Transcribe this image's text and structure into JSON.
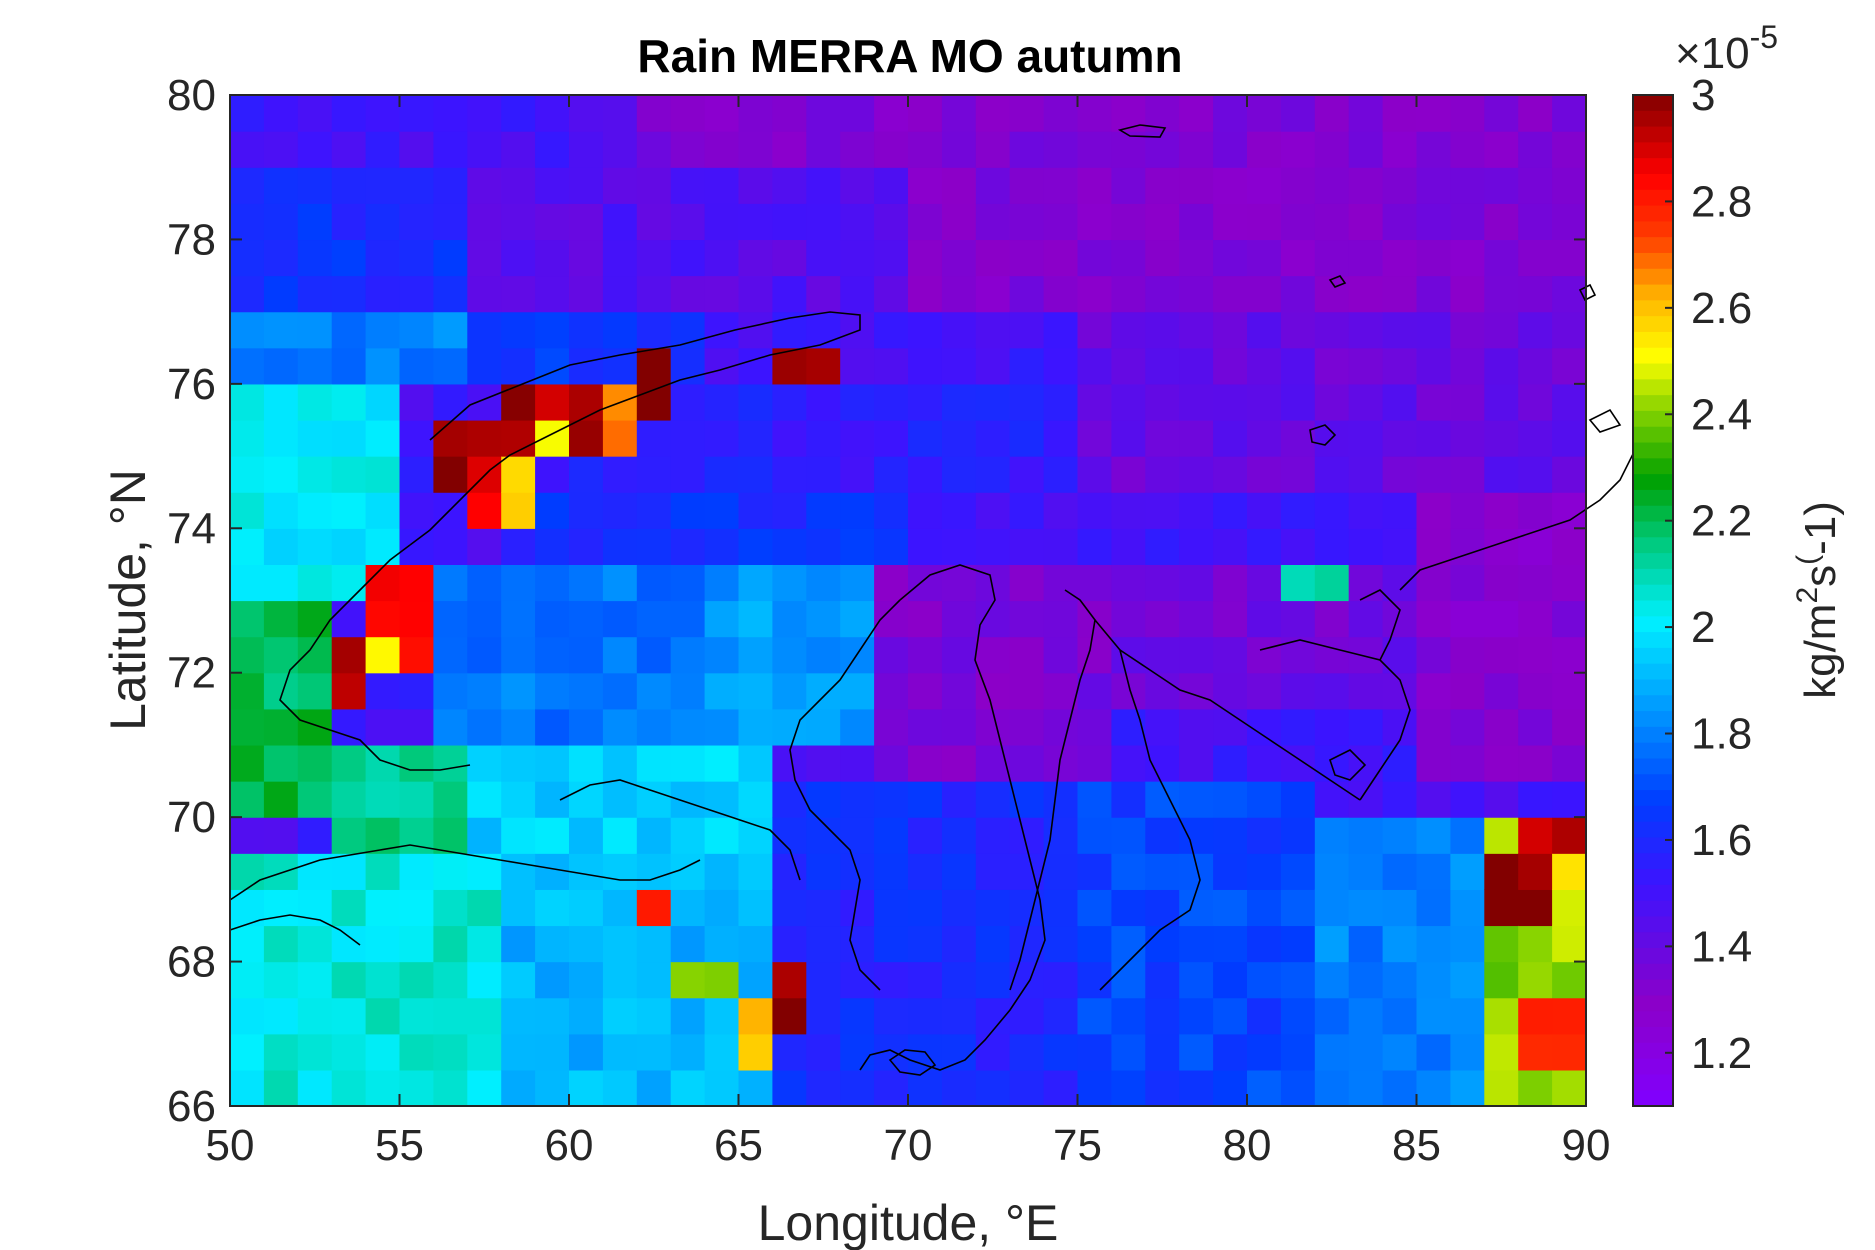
{
  "chart_data": {
    "type": "heatmap",
    "title": "Rain MERRA MO autumn",
    "xlabel": "Longitude, °E",
    "ylabel": "Latitude, °N",
    "xlim": [
      50,
      90
    ],
    "ylim": [
      66,
      80
    ],
    "xticks": [
      "50",
      "55",
      "60",
      "65",
      "70",
      "75",
      "80",
      "85",
      "90"
    ],
    "yticks": [
      "66",
      "68",
      "70",
      "72",
      "74",
      "76",
      "78",
      "80"
    ],
    "colorbar": {
      "label": "kg/m²s(-1)",
      "label_base": "kg/m",
      "label_sup1": "2",
      "label_mid": "s",
      "label_sup2": "(",
      "label_end": "-1)",
      "multiplier_base": "×10",
      "multiplier_exp": "-5",
      "range": [
        1.1,
        3.0
      ],
      "ticks": [
        "1.2",
        "1.4",
        "1.6",
        "1.8",
        "2",
        "2.2",
        "2.4",
        "2.6",
        "2.8",
        "3"
      ],
      "colormap": "jet-like (purple → blue → cyan → green → yellow → red → dark red)"
    },
    "grid": {
      "lon_start": 50,
      "lon_end": 90,
      "lon_step": 1,
      "lat_start": 66,
      "lat_end": 80,
      "lat_step": 0.5,
      "units": "×10^-5 kg/m²s",
      "background_value": 1.5,
      "region_patches": [
        {
          "lon": [
            50,
            62
          ],
          "lat": [
            79,
            80
          ],
          "value": 1.5
        },
        {
          "lon": [
            62,
            90
          ],
          "lat": [
            77,
            80
          ],
          "value": 1.32
        },
        {
          "lon": [
            50,
            57
          ],
          "lat": [
            77,
            79
          ],
          "value": 1.62
        },
        {
          "lon": [
            57,
            70
          ],
          "lat": [
            77,
            79
          ],
          "value": 1.45
        },
        {
          "lon": [
            50,
            57
          ],
          "lat": [
            76,
            77
          ],
          "value": 1.8
        },
        {
          "lon": [
            57,
            64
          ],
          "lat": [
            76,
            77
          ],
          "value": 1.65
        },
        {
          "lon": [
            50,
            55
          ],
          "lat": [
            73,
            76
          ],
          "value": 2.0
        },
        {
          "lon": [
            50,
            53
          ],
          "lat": [
            70,
            73
          ],
          "value": 2.2
        },
        {
          "lon": [
            53,
            57
          ],
          "lat": [
            69,
            71
          ],
          "value": 2.15
        },
        {
          "lon": [
            57,
            66
          ],
          "lat": [
            69.5,
            71
          ],
          "value": 1.95
        },
        {
          "lon": [
            56,
            64
          ],
          "lat": [
            71,
            73.5
          ],
          "value": 1.78
        },
        {
          "lon": [
            64,
            69
          ],
          "lat": [
            71,
            73.5
          ],
          "value": 1.85
        },
        {
          "lon": [
            58,
            70
          ],
          "lat": [
            73.5,
            74.5
          ],
          "value": 1.62
        },
        {
          "lon": [
            60,
            75
          ],
          "lat": [
            74.5,
            76
          ],
          "value": 1.55
        },
        {
          "lon": [
            75,
            90
          ],
          "lat": [
            74.5,
            77
          ],
          "value": 1.4
        },
        {
          "lon": [
            69,
            76
          ],
          "lat": [
            70.5,
            73.5
          ],
          "value": 1.35
        },
        {
          "lon": [
            76,
            85
          ],
          "lat": [
            71.5,
            73.5
          ],
          "value": 1.38
        },
        {
          "lon": [
            85,
            90
          ],
          "lat": [
            70.5,
            74.5
          ],
          "value": 1.3
        },
        {
          "lon": [
            66,
            75
          ],
          "lat": [
            66,
            70.5
          ],
          "value": 1.6
        },
        {
          "lon": [
            75,
            82
          ],
          "lat": [
            66,
            70.5
          ],
          "value": 1.68
        },
        {
          "lon": [
            82,
            87
          ],
          "lat": [
            66,
            70
          ],
          "value": 1.8
        },
        {
          "lon": [
            50,
            58
          ],
          "lat": [
            66,
            69.5
          ],
          "value": 2.05
        },
        {
          "lon": [
            58,
            66
          ],
          "lat": [
            66,
            69.5
          ],
          "value": 1.9
        },
        {
          "lon": [
            87,
            90
          ],
          "lat": [
            66,
            70
          ],
          "value": 2.4
        }
      ],
      "hotspots": [
        {
          "lon": [
            56,
            59
          ],
          "lat": [
            74.5,
            75.5
          ],
          "value": 3.0
        },
        {
          "lon": [
            58,
            61
          ],
          "lat": [
            75,
            76
          ],
          "value": 2.95
        },
        {
          "lon": [
            57,
            58
          ],
          "lat": [
            74,
            75
          ],
          "value": 2.85
        },
        {
          "lon": [
            61,
            62
          ],
          "lat": [
            75,
            76
          ],
          "value": 2.7
        },
        {
          "lon": [
            62,
            63
          ],
          "lat": [
            75.5,
            76.5
          ],
          "value": 3.0
        },
        {
          "lon": [
            58,
            59
          ],
          "lat": [
            74,
            75
          ],
          "value": 2.6
        },
        {
          "lon": [
            59,
            60
          ],
          "lat": [
            75,
            75.5
          ],
          "value": 2.45
        },
        {
          "lon": [
            66,
            68
          ],
          "lat": [
            76,
            76.5
          ],
          "value": 3.0
        },
        {
          "lon": [
            54,
            56
          ],
          "lat": [
            72,
            73.5
          ],
          "value": 2.85
        },
        {
          "lon": [
            53,
            54
          ],
          "lat": [
            71.5,
            72.5
          ],
          "value": 2.9
        },
        {
          "lon": [
            54,
            55
          ],
          "lat": [
            72,
            72.5
          ],
          "value": 2.55
        },
        {
          "lon": [
            88,
            90
          ],
          "lat": [
            69.5,
            70
          ],
          "value": 2.95
        },
        {
          "lon": [
            87,
            89
          ],
          "lat": [
            68.5,
            69.5
          ],
          "value": 3.0
        },
        {
          "lon": [
            88,
            90
          ],
          "lat": [
            66.5,
            67.5
          ],
          "value": 2.8
        },
        {
          "lon": [
            63,
            65
          ],
          "lat": [
            67.5,
            68
          ],
          "value": 2.45
        },
        {
          "lon": [
            65,
            66
          ],
          "lat": [
            66.5,
            67.5
          ],
          "value": 2.6
        },
        {
          "lon": [
            66,
            67
          ],
          "lat": [
            67,
            68
          ],
          "value": 2.95
        },
        {
          "lon": [
            62,
            63
          ],
          "lat": [
            68.5,
            69
          ],
          "value": 2.75
        },
        {
          "lon": [
            89,
            90
          ],
          "lat": [
            68,
            69.5
          ],
          "value": 2.5
        },
        {
          "lon": [
            81,
            83
          ],
          "lat": [
            73,
            73.5
          ],
          "value": 2.15
        }
      ]
    }
  }
}
